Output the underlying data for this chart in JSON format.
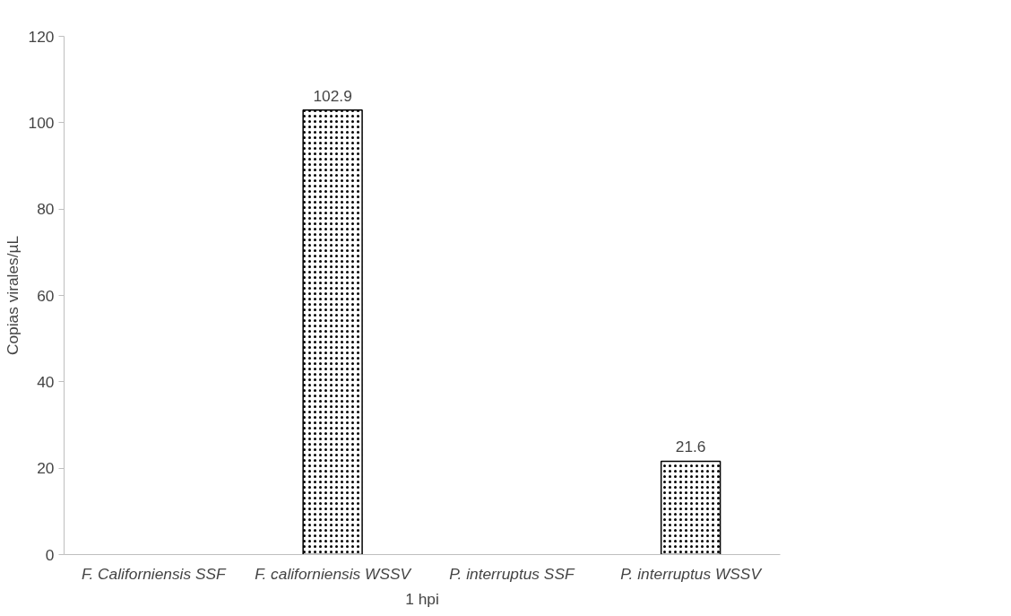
{
  "chart_data": {
    "type": "bar",
    "xlabel": "1 hpi",
    "ylabel": "Copias virales/µL",
    "categories": [
      "F. Californiensis SSF",
      "F. californiensis WSSV",
      "P. interruptus SSF",
      "P. interruptus WSSV"
    ],
    "values": [
      null,
      102.9,
      null,
      21.6
    ],
    "color": "#000000",
    "ylim": [
      0,
      120
    ],
    "yticks": [
      0,
      20,
      40,
      60,
      80,
      100,
      120
    ],
    "data_labels": true,
    "grid": false
  }
}
